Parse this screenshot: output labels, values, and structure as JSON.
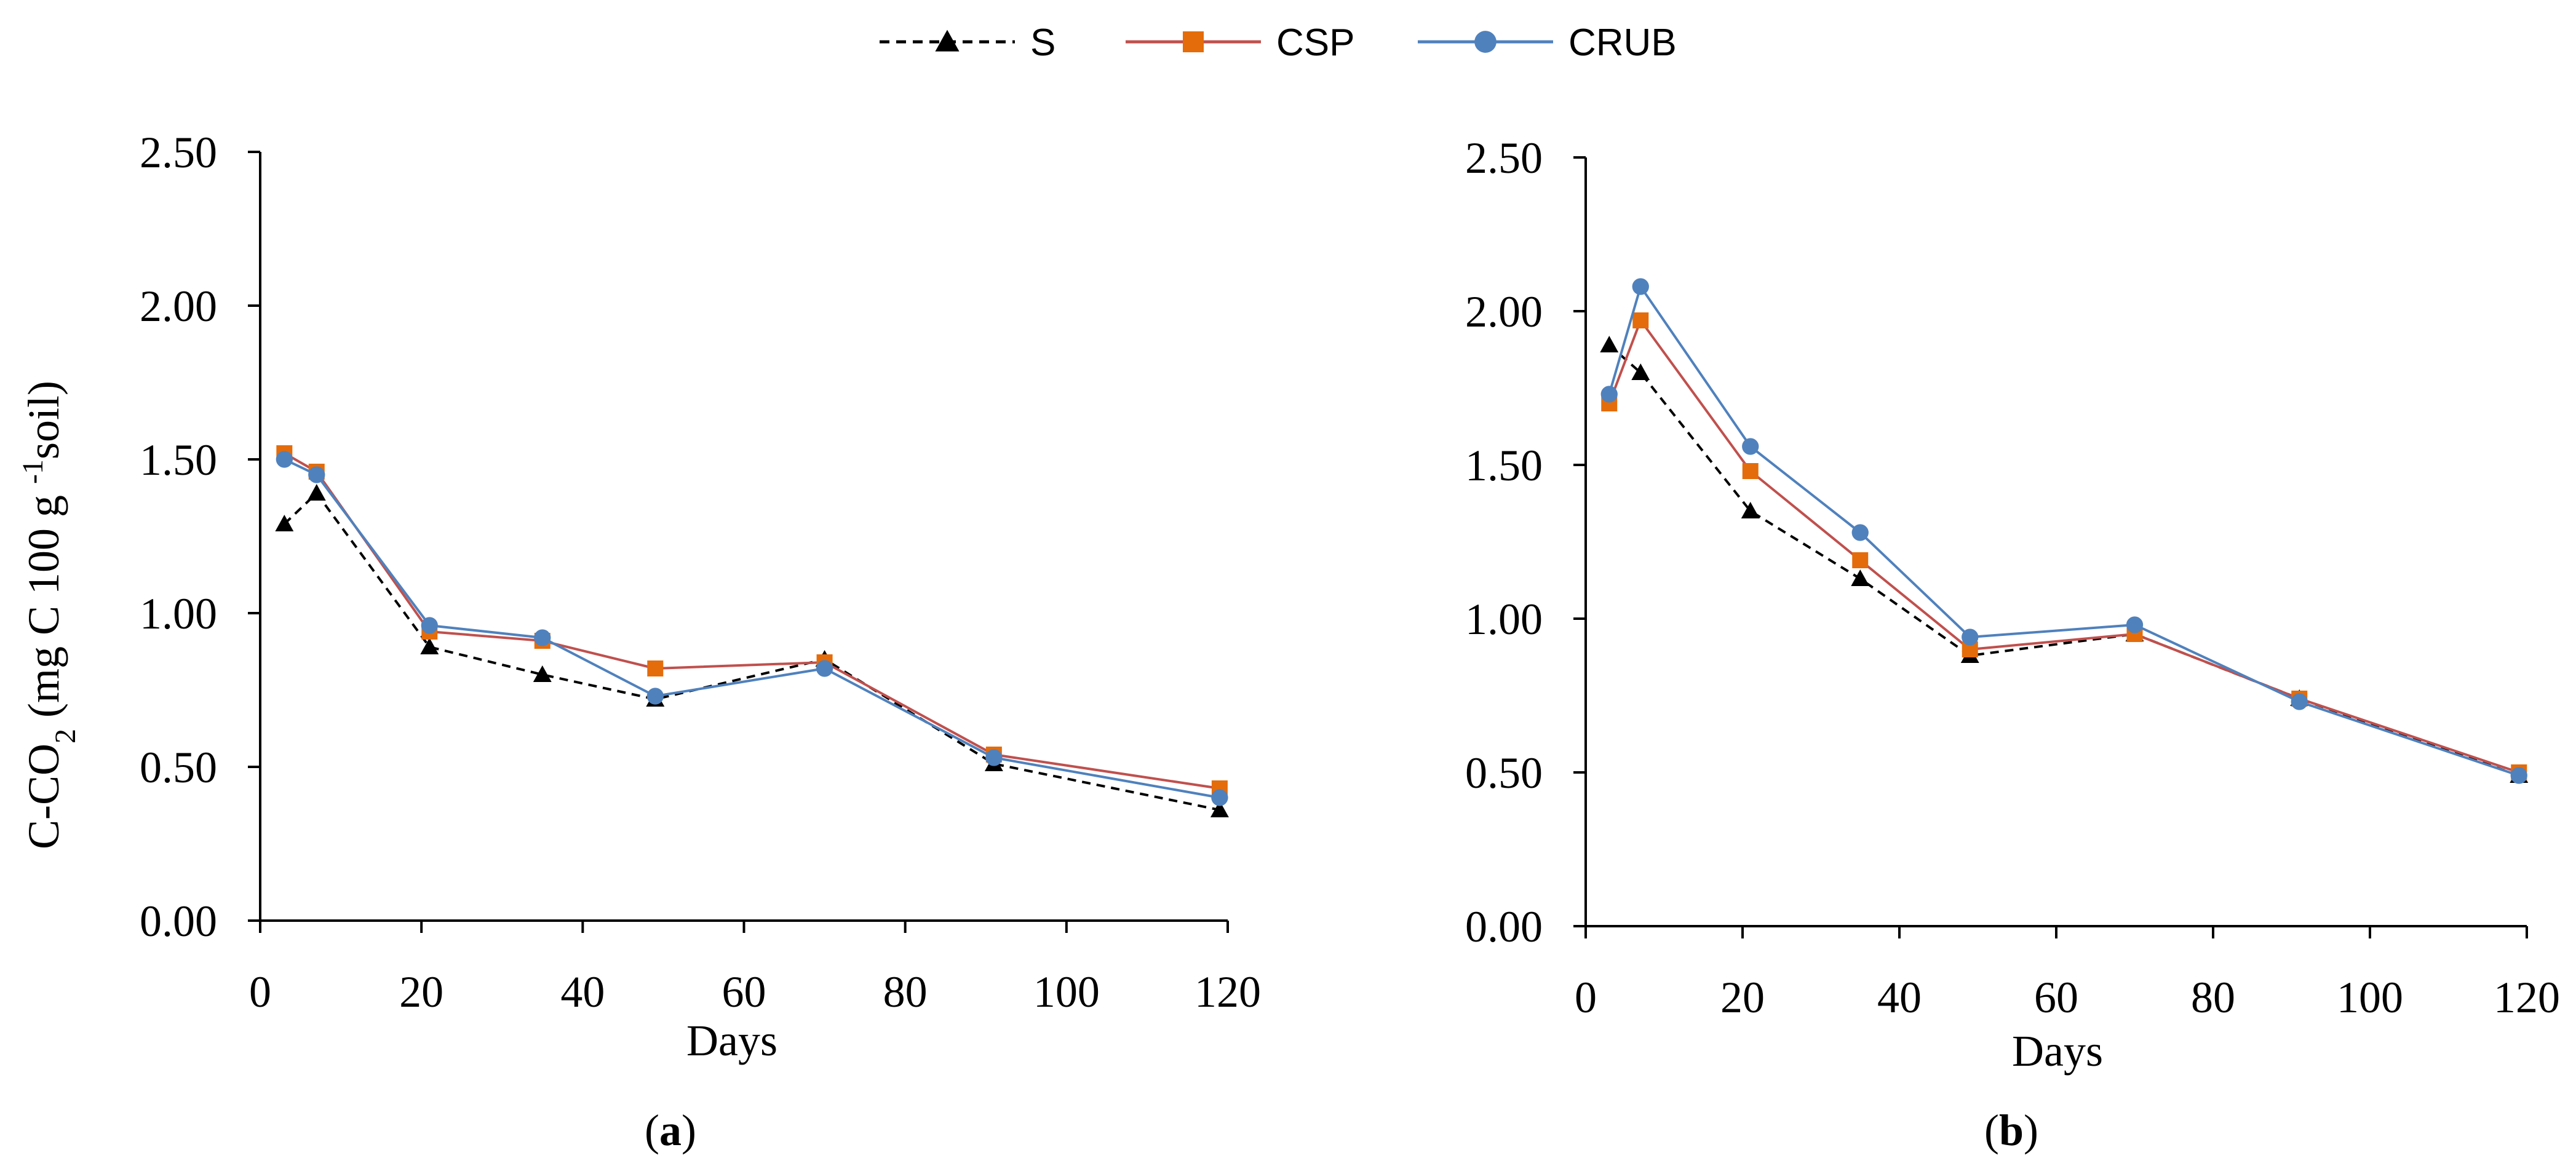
{
  "legend": {
    "items": [
      {
        "name": "S",
        "color": "#000000",
        "dash": true,
        "marker": "triangle"
      },
      {
        "name": "CSP",
        "color": "#c0504d",
        "marker_color": "#e46c0a",
        "dash": false,
        "marker": "square"
      },
      {
        "name": "CRUB",
        "color": "#4f81bd",
        "marker_color": "#4f81bd",
        "dash": false,
        "marker": "circle"
      }
    ]
  },
  "chart_data": [
    {
      "type": "line",
      "panel_label": "(a)",
      "panel_letter": "a",
      "xlabel": "Days",
      "ylabel": "C-CO",
      "ylabel_sub": "2",
      "ylabel_mid": " (mg C 100 g ",
      "ylabel_sup": "-1",
      "ylabel_end": "soil)",
      "xlim": [
        0,
        120
      ],
      "ylim": [
        0,
        2.5
      ],
      "xticks": [
        0,
        20,
        40,
        60,
        80,
        100,
        120
      ],
      "yticks": [
        "0.00",
        "0.50",
        "1.00",
        "1.50",
        "2.00",
        "2.50"
      ],
      "x": [
        3,
        7,
        21,
        35,
        49,
        70,
        91,
        119
      ],
      "series": [
        {
          "name": "S",
          "values": [
            1.29,
            1.39,
            0.89,
            0.8,
            0.72,
            0.85,
            0.51,
            0.36
          ]
        },
        {
          "name": "CSP",
          "values": [
            1.52,
            1.46,
            0.94,
            0.91,
            0.82,
            0.84,
            0.54,
            0.43
          ]
        },
        {
          "name": "CRUB",
          "values": [
            1.5,
            1.45,
            0.96,
            0.92,
            0.73,
            0.82,
            0.53,
            0.4
          ]
        }
      ]
    },
    {
      "type": "line",
      "panel_label": "(b)",
      "panel_letter": "b",
      "xlabel": "Days",
      "xlim": [
        0,
        120
      ],
      "ylim": [
        0,
        2.5
      ],
      "xticks": [
        0,
        20,
        40,
        60,
        80,
        100,
        120
      ],
      "yticks": [
        "0.00",
        "0.50",
        "1.00",
        "1.50",
        "2.00",
        "2.50"
      ],
      "x": [
        3,
        7,
        21,
        35,
        49,
        70,
        91,
        119
      ],
      "series": [
        {
          "name": "S",
          "values": [
            1.89,
            1.8,
            1.35,
            1.13,
            0.88,
            0.95,
            0.74,
            0.49
          ]
        },
        {
          "name": "CSP",
          "values": [
            1.7,
            1.97,
            1.48,
            1.19,
            0.9,
            0.95,
            0.74,
            0.5
          ]
        },
        {
          "name": "CRUB",
          "values": [
            1.73,
            2.08,
            1.56,
            1.28,
            0.94,
            0.98,
            0.73,
            0.49
          ]
        }
      ]
    }
  ]
}
